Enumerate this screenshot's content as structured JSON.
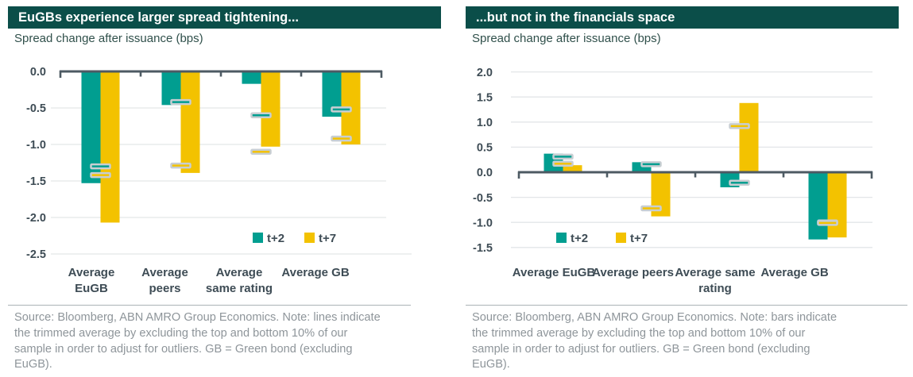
{
  "chart_data": [
    {
      "id": "chart-left",
      "type": "bar",
      "title": "EuGBs experience larger spread tightening...",
      "subtitle": "Spread change after issuance (bps)",
      "categories": [
        "Average EuGB",
        "Average peers",
        "Average same rating",
        "Average GB"
      ],
      "category_label_lines": [
        [
          "Average",
          "EuGB"
        ],
        [
          "Average",
          "peers"
        ],
        [
          "Average",
          "same rating"
        ],
        [
          "Average GB"
        ]
      ],
      "series": [
        {
          "name": "t+2",
          "color": "#019E90",
          "bar_values": [
            -1.53,
            -0.46,
            -0.17,
            -0.62
          ],
          "trimmed_average_markers": [
            -1.3,
            -0.42,
            -0.6,
            -0.52
          ]
        },
        {
          "name": "t+7",
          "color": "#F3C200",
          "bar_values": [
            -2.07,
            -1.39,
            -1.03,
            -1.0
          ],
          "trimmed_average_markers": [
            -1.42,
            -1.29,
            -1.1,
            -0.92
          ]
        }
      ],
      "ylim": [
        -2.5,
        0.0
      ],
      "yticks": [
        0.0,
        -0.5,
        -1.0,
        -1.5,
        -2.0,
        -2.5
      ],
      "ytick_labels": [
        "0.0",
        "-0.5",
        "-1.0",
        "-1.5",
        "-2.0",
        "-2.5"
      ],
      "xlabel": "",
      "ylabel": "",
      "grid": true,
      "legend_position": "inside-bottom",
      "legend_labels": [
        "t+2",
        "t+7"
      ],
      "source_note_lines": [
        "Source: Bloomberg, ABN AMRO Group Economics. Note: lines indicate",
        "the trimmed average by excluding the top and bottom 10% of our",
        "sample in order to adjust for outliers. GB = Green bond (excluding",
        "EuGB)."
      ]
    },
    {
      "id": "chart-right",
      "type": "bar",
      "title": "...but not in the financials space",
      "subtitle": "Spread change after issuance (bps)",
      "categories": [
        "Average EuGB",
        "Average peers",
        "Average same rating",
        "Average GB"
      ],
      "category_label_lines": [
        [
          "Average EuGB"
        ],
        [
          "Average peers"
        ],
        [
          "Average same",
          "rating"
        ],
        [
          "Average GB"
        ]
      ],
      "series": [
        {
          "name": "t+2",
          "color": "#019E90",
          "bar_values": [
            0.37,
            0.2,
            -0.3,
            -1.34
          ],
          "trimmed_average_markers": [
            0.31,
            0.16,
            -0.21,
            -1.0
          ]
        },
        {
          "name": "t+7",
          "color": "#F3C200",
          "bar_values": [
            0.14,
            -0.88,
            1.38,
            -1.3
          ],
          "trimmed_average_markers": [
            0.17,
            -0.72,
            0.92,
            -1.01
          ]
        }
      ],
      "ylim": [
        -1.5,
        2.0
      ],
      "yticks": [
        2.0,
        1.5,
        1.0,
        0.5,
        0.0,
        -0.5,
        -1.0,
        -1.5
      ],
      "ytick_labels": [
        "2.0",
        "1.5",
        "1.0",
        "0.5",
        "0.0",
        "-0.5",
        "-1.0",
        "-1.5"
      ],
      "xlabel": "",
      "ylabel": "",
      "grid": true,
      "legend_position": "inside-bottom",
      "legend_labels": [
        "t+2",
        "t+7"
      ],
      "source_note_lines": [
        "Source: Bloomberg, ABN AMRO Group Economics. Note: bars indicate",
        "the trimmed average by excluding the top and bottom 10% of our",
        "sample in order to adjust for outliers. GB = Green bond (excluding",
        "EuGB)."
      ]
    }
  ],
  "colors": {
    "header_bg": "#0B4E49",
    "header_text": "#FFFFFF",
    "teal": "#019E90",
    "yellow": "#F3C200",
    "axis": "#4D5A63",
    "gridline": "#E3E6E8",
    "tick_text": "#3E4C55",
    "subtitle_text": "#30504B",
    "source_text": "#8E959A",
    "divider": "#ABB2B6",
    "marker_outline": "#C8CED2"
  }
}
